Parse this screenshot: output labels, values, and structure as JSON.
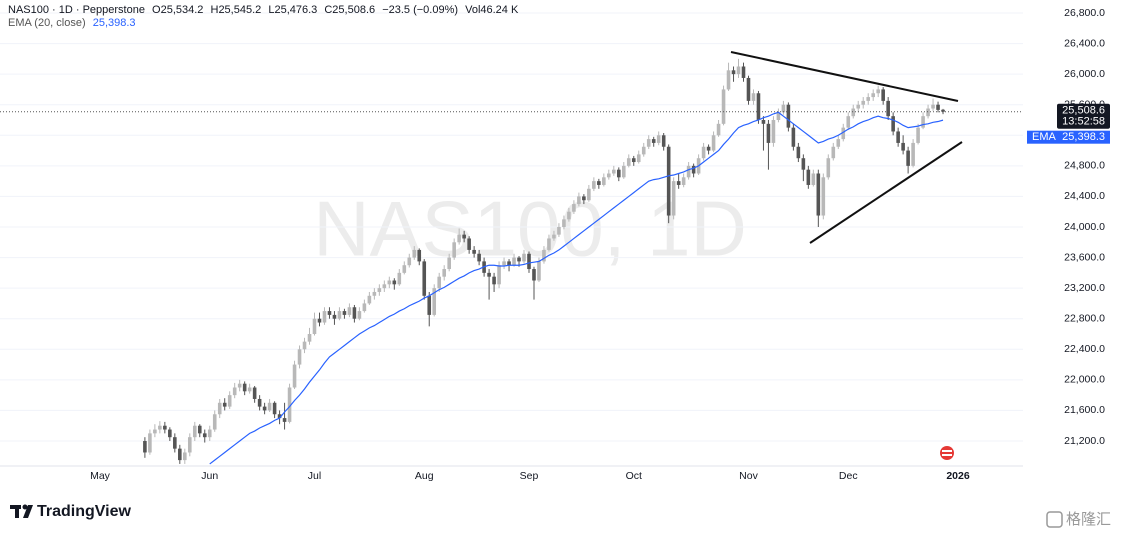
{
  "header": {
    "watermark": "NAS100, 1D",
    "brand": "TradingView",
    "corner_mark": "格隆汇"
  },
  "chart_data": {
    "type": "candlestick",
    "legend": {
      "symbol": "NAS100 · 1D · Pepperstone",
      "ohlc": [
        {
          "label": "O",
          "value": "25,534.2"
        },
        {
          "label": "H",
          "value": "25,545.2"
        },
        {
          "label": "L",
          "value": "25,476.3"
        },
        {
          "label": "C",
          "value": "25,508.6"
        }
      ],
      "change": "−23.5 (−0.09%)",
      "vol_label": "Vol",
      "vol": "46.24 K"
    },
    "last_label": "25,508.6",
    "countdown": "13:52:58",
    "up_color": "#b8b8b8",
    "down_color": "#555555",
    "ylim": [
      20873,
      26970
    ],
    "yticks": [
      {
        "value": 21200,
        "label": "21,200.0"
      },
      {
        "value": 21600,
        "label": "21,600.0"
      },
      {
        "value": 22000,
        "label": "22,000.0"
      },
      {
        "value": 22400,
        "label": "22,400.0"
      },
      {
        "value": 22800,
        "label": "22,800.0"
      },
      {
        "value": 23200,
        "label": "23,200.0"
      },
      {
        "value": 23600,
        "label": "23,600.0"
      },
      {
        "value": 24000,
        "label": "24,000.0"
      },
      {
        "value": 24400,
        "label": "24,400.0"
      },
      {
        "value": 24800,
        "label": "24,800.0"
      },
      {
        "value": 25200,
        "label": "25,200.0"
      },
      {
        "value": 25600,
        "label": "25,600.0"
      },
      {
        "value": 26000,
        "label": "26,000.0"
      },
      {
        "value": 26400,
        "label": "26,400.0"
      },
      {
        "value": 26800,
        "label": "26,800.0"
      }
    ],
    "grid": true,
    "categories": [
      "May",
      null,
      null,
      null,
      null,
      null,
      null,
      null,
      null,
      null,
      null,
      null,
      null,
      null,
      null,
      null,
      null,
      null,
      null,
      null,
      null,
      null,
      "Jun",
      null,
      null,
      null,
      null,
      null,
      null,
      null,
      null,
      null,
      null,
      null,
      null,
      null,
      null,
      null,
      null,
      null,
      null,
      null,
      null,
      "Jul",
      null,
      null,
      null,
      null,
      null,
      null,
      null,
      null,
      null,
      null,
      null,
      null,
      null,
      null,
      null,
      null,
      null,
      null,
      null,
      null,
      null,
      "Aug",
      null,
      null,
      null,
      null,
      null,
      null,
      null,
      null,
      null,
      null,
      null,
      null,
      null,
      null,
      null,
      null,
      null,
      null,
      null,
      null,
      "Sep",
      null,
      null,
      null,
      null,
      null,
      null,
      null,
      null,
      null,
      null,
      null,
      null,
      null,
      null,
      null,
      null,
      null,
      null,
      null,
      null,
      "Oct",
      null,
      null,
      null,
      null,
      null,
      null,
      null,
      null,
      null,
      null,
      null,
      null,
      null,
      null,
      null,
      null,
      null,
      null,
      null,
      null,
      null,
      null,
      "Nov",
      null,
      null,
      null,
      null,
      null,
      null,
      null,
      null,
      null,
      null,
      null,
      null,
      null,
      null,
      null,
      null,
      null,
      null,
      null,
      "Dec",
      null,
      null,
      null,
      null,
      null,
      null,
      null,
      null,
      null,
      null,
      null,
      null,
      null,
      null,
      null,
      null,
      null,
      null,
      null,
      null,
      null,
      "2026"
    ],
    "open": [
      null,
      null,
      null,
      null,
      null,
      null,
      null,
      null,
      null,
      21200,
      21050,
      21300,
      21350,
      21400,
      21350,
      21250,
      21100,
      20950,
      21050,
      21250,
      21400,
      21300,
      21250,
      21350,
      21550,
      21700,
      21650,
      21800,
      21900,
      21950,
      21850,
      21900,
      21750,
      21650,
      21600,
      21700,
      21550,
      21500,
      21450,
      21900,
      22200,
      22400,
      22500,
      22600,
      22800,
      22750,
      22900,
      22850,
      22800,
      22900,
      22850,
      22950,
      22800,
      22900,
      23000,
      23100,
      23150,
      23200,
      23250,
      23300,
      23250,
      23400,
      23500,
      23600,
      23700,
      23550,
      23100,
      22850,
      23200,
      23350,
      23450,
      23600,
      23800,
      23900,
      23850,
      23700,
      23650,
      23550,
      23400,
      23350,
      23250,
      23500,
      23550,
      23500,
      23600,
      23550,
      23650,
      23450,
      23300,
      23550,
      23700,
      23850,
      23900,
      24000,
      24100,
      24200,
      24300,
      24400,
      24350,
      24500,
      24600,
      24550,
      24650,
      24700,
      24750,
      24650,
      24800,
      24900,
      24850,
      24950,
      25050,
      25150,
      25100,
      25200,
      25050,
      24150,
      24600,
      24550,
      24650,
      24800,
      24700,
      24900,
      25050,
      25000,
      25200,
      25350,
      25800,
      26050,
      26000,
      26100,
      25950,
      25650,
      25750,
      25400,
      25350,
      25100,
      25400,
      25500,
      25600,
      25300,
      25050,
      24900,
      24750,
      24550,
      24700,
      24150,
      24650,
      24900,
      25050,
      25150,
      25300,
      25450,
      25550,
      25600,
      25650,
      25700,
      25750,
      25800,
      25650,
      25450,
      25250,
      25100,
      25000,
      24800,
      25100,
      25300,
      25450,
      25550,
      25600,
      25534.2,
      null,
      null,
      null
    ],
    "high": [
      null,
      null,
      null,
      null,
      null,
      null,
      null,
      null,
      null,
      21250,
      21350,
      21420,
      21460,
      21450,
      21380,
      21300,
      21150,
      21100,
      21300,
      21450,
      21420,
      21350,
      21400,
      21600,
      21750,
      21760,
      21850,
      21960,
      22000,
      21980,
      21950,
      21920,
      21800,
      21700,
      21750,
      21720,
      21600,
      21700,
      21950,
      22250,
      22450,
      22550,
      22680,
      22880,
      22880,
      22950,
      22950,
      22900,
      22950,
      22930,
      23000,
      22980,
      22950,
      23050,
      23150,
      23200,
      23250,
      23300,
      23350,
      23330,
      23450,
      23550,
      23650,
      23750,
      23720,
      23580,
      23150,
      23250,
      23400,
      23500,
      23650,
      23850,
      23980,
      23950,
      23880,
      23750,
      23700,
      23600,
      23450,
      23400,
      23550,
      23600,
      23580,
      23650,
      23620,
      23700,
      23680,
      23480,
      23600,
      23750,
      23900,
      23950,
      24050,
      24150,
      24250,
      24350,
      24450,
      24430,
      24550,
      24650,
      24630,
      24700,
      24750,
      24800,
      24780,
      24850,
      24950,
      24930,
      25000,
      25100,
      25200,
      25180,
      25250,
      25230,
      25080,
      24650,
      24700,
      24700,
      24850,
      24830,
      24950,
      25100,
      25080,
      25250,
      25400,
      25850,
      26150,
      26100,
      26200,
      26150,
      25980,
      25800,
      25780,
      25450,
      25400,
      25450,
      25550,
      25650,
      25630,
      25350,
      25100,
      24950,
      24800,
      24750,
      24750,
      24700,
      24950,
      25100,
      25200,
      25350,
      25500,
      25600,
      25650,
      25700,
      25750,
      25800,
      25850,
      25830,
      25700,
      25500,
      25300,
      25200,
      25050,
      25150,
      25350,
      25500,
      25600,
      25680,
      25640,
      25545.2,
      null,
      null,
      null
    ],
    "low": [
      null,
      null,
      null,
      null,
      null,
      null,
      null,
      null,
      null,
      20980,
      21020,
      21250,
      21300,
      21300,
      21200,
      21050,
      20900,
      20900,
      21000,
      21200,
      21250,
      21180,
      21200,
      21320,
      21500,
      21600,
      21620,
      21760,
      21850,
      21800,
      21820,
      21700,
      21600,
      21550,
      21580,
      21500,
      21420,
      21350,
      21430,
      21880,
      22150,
      22350,
      22460,
      22580,
      22700,
      22720,
      22800,
      22720,
      22780,
      22800,
      22820,
      22750,
      22780,
      22880,
      22980,
      23050,
      23100,
      23150,
      23200,
      23180,
      23230,
      23380,
      23470,
      23570,
      23500,
      23050,
      22700,
      22830,
      23150,
      23300,
      23420,
      23570,
      23770,
      23800,
      23650,
      23600,
      23500,
      23350,
      23050,
      23150,
      23200,
      23450,
      23420,
      23480,
      23480,
      23520,
      23400,
      23050,
      23280,
      23520,
      23680,
      23820,
      23870,
      23970,
      24070,
      24170,
      24270,
      24300,
      24330,
      24470,
      24500,
      24530,
      24620,
      24670,
      24600,
      24630,
      24780,
      24800,
      24830,
      24920,
      25020,
      25050,
      25070,
      25000,
      24050,
      24100,
      24500,
      24520,
      24620,
      24650,
      24680,
      24870,
      24950,
      24980,
      25180,
      25330,
      25780,
      25900,
      25950,
      25900,
      25600,
      25600,
      25350,
      25000,
      24750,
      25050,
      25370,
      25470,
      25250,
      25000,
      24850,
      24600,
      24500,
      24530,
      24000,
      24100,
      24620,
      24870,
      25020,
      25120,
      25270,
      25420,
      25500,
      25550,
      25600,
      25650,
      25700,
      25600,
      25400,
      25200,
      25050,
      24950,
      24700,
      24780,
      25080,
      25280,
      25420,
      25520,
      25500,
      25476.3,
      null,
      null,
      null
    ],
    "close": [
      null,
      null,
      null,
      null,
      null,
      null,
      null,
      null,
      null,
      21050,
      21300,
      21350,
      21400,
      21350,
      21250,
      21100,
      20950,
      21050,
      21250,
      21400,
      21300,
      21250,
      21350,
      21550,
      21700,
      21650,
      21800,
      21900,
      21950,
      21850,
      21900,
      21750,
      21650,
      21600,
      21700,
      21550,
      21500,
      21450,
      21900,
      22200,
      22400,
      22500,
      22600,
      22800,
      22750,
      22900,
      22850,
      22800,
      22900,
      22850,
      22950,
      22800,
      22900,
      23000,
      23100,
      23150,
      23200,
      23250,
      23300,
      23250,
      23400,
      23500,
      23600,
      23700,
      23550,
      23100,
      22850,
      23200,
      23350,
      23450,
      23600,
      23800,
      23900,
      23850,
      23700,
      23650,
      23550,
      23400,
      23350,
      23250,
      23500,
      23550,
      23500,
      23600,
      23550,
      23650,
      23450,
      23300,
      23550,
      23700,
      23850,
      23900,
      24000,
      24100,
      24200,
      24300,
      24400,
      24350,
      24500,
      24600,
      24550,
      24650,
      24700,
      24750,
      24650,
      24800,
      24900,
      24850,
      24950,
      25050,
      25150,
      25100,
      25200,
      25050,
      24150,
      24600,
      24550,
      24650,
      24800,
      24700,
      24900,
      25050,
      25000,
      25200,
      25350,
      25800,
      26050,
      26000,
      26100,
      25950,
      25650,
      25750,
      25400,
      25350,
      25100,
      25400,
      25500,
      25600,
      25300,
      25050,
      24900,
      24750,
      24550,
      24700,
      24150,
      24650,
      24900,
      25050,
      25150,
      25300,
      25450,
      25550,
      25600,
      25650,
      25700,
      25750,
      25800,
      25650,
      25450,
      25250,
      25100,
      25000,
      24800,
      25100,
      25300,
      25450,
      25550,
      25600,
      25532.1,
      25508.6,
      null,
      null,
      null
    ],
    "ema": {
      "name": "EMA (20, close)",
      "tag": "EMA",
      "last_label": "25,398.3",
      "color": "#2962ff",
      "values": [
        null,
        null,
        null,
        null,
        null,
        null,
        null,
        null,
        null,
        null,
        null,
        null,
        null,
        null,
        null,
        null,
        null,
        null,
        null,
        null,
        null,
        null,
        20900,
        20950,
        21000,
        21050,
        21100,
        21150,
        21200,
        21250,
        21300,
        21330,
        21370,
        21400,
        21430,
        21470,
        21500,
        21580,
        21650,
        21730,
        21800,
        21880,
        21970,
        22050,
        22130,
        22220,
        22300,
        22350,
        22400,
        22450,
        22500,
        22550,
        22600,
        22640,
        22680,
        22710,
        22750,
        22790,
        22830,
        22860,
        22900,
        22930,
        22970,
        23000,
        23030,
        23070,
        23100,
        23140,
        23180,
        23210,
        23250,
        23290,
        23330,
        23360,
        23400,
        23430,
        23450,
        23480,
        23500,
        23500,
        23490,
        23490,
        23500,
        23500,
        23500,
        23510,
        23530,
        23540,
        23550,
        23590,
        23630,
        23660,
        23700,
        23750,
        23800,
        23850,
        23900,
        23950,
        24000,
        24050,
        24100,
        24150,
        24200,
        24250,
        24300,
        24350,
        24400,
        24450,
        24500,
        24550,
        24600,
        24620,
        24630,
        24650,
        24670,
        24680,
        24700,
        24720,
        24750,
        24770,
        24800,
        24850,
        24900,
        24950,
        25000,
        25080,
        25150,
        25230,
        25300,
        25330,
        25350,
        25380,
        25400,
        25430,
        25450,
        25480,
        25500,
        25450,
        25400,
        25350,
        25300,
        25250,
        25200,
        25150,
        25100,
        25120,
        25150,
        25170,
        25200,
        25240,
        25280,
        25310,
        25350,
        25380,
        25400,
        25430,
        25450,
        25430,
        25420,
        25400,
        25370,
        25330,
        25300,
        25310,
        25320,
        25340,
        25350,
        25370,
        25380,
        25398.3,
        null,
        null,
        null
      ]
    }
  }
}
